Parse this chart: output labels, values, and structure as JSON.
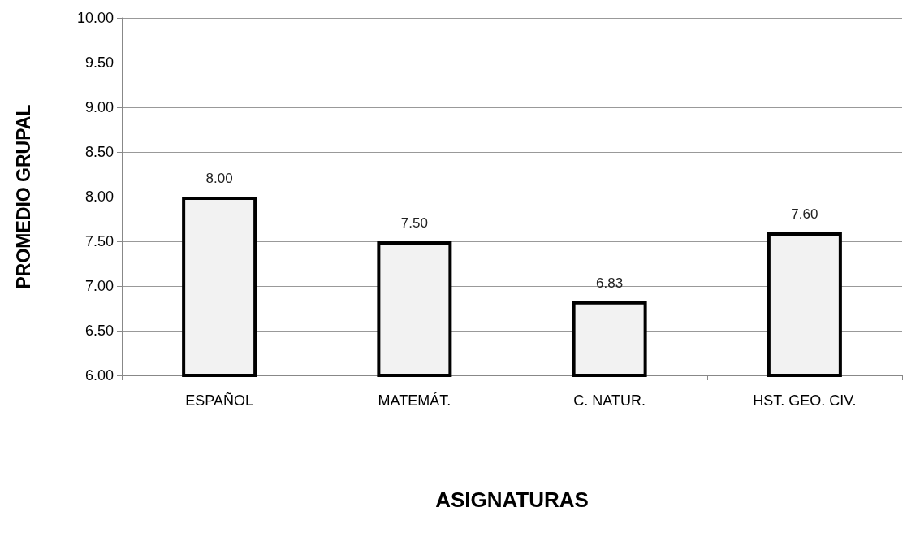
{
  "chart_data": {
    "type": "bar",
    "xlabel": "ASIGNATURAS",
    "ylabel": "PROMEDIO GRUPAL",
    "categories": [
      "ESPAÑOL",
      "MATEMÁT.",
      "C. NATUR.",
      "HST. GEO. CIV."
    ],
    "values": [
      8,
      7.5,
      6.83,
      7.6
    ],
    "color": "#f2f2f2",
    "value_labels": [
      "8.00",
      "7.50",
      "6.83",
      "7.60"
    ],
    "ylim": [
      6,
      10
    ],
    "yticks": [
      {
        "value": 6,
        "label": "6.00"
      },
      {
        "value": 6.5,
        "label": "6.50"
      },
      {
        "value": 7,
        "label": "7.00"
      },
      {
        "value": 7.5,
        "label": "7.50"
      },
      {
        "value": 8,
        "label": "8.00"
      },
      {
        "value": 8.5,
        "label": "8.50"
      },
      {
        "value": 9,
        "label": "9.00"
      },
      {
        "value": 9.5,
        "label": "9.50"
      },
      {
        "value": 10,
        "label": "10.00"
      }
    ],
    "grid": "y"
  }
}
